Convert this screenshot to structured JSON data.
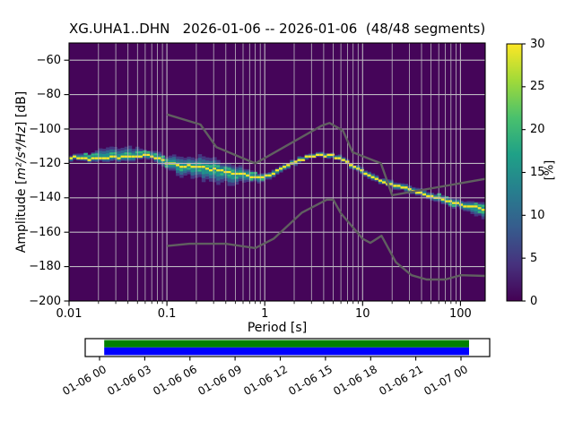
{
  "title": "XG.UHA1..DHN   2026-01-06 -- 2026-01-06  (48/48 segments)",
  "axes": {
    "xlabel": "Period [s]",
    "ylabel_prefix": "Amplitude [",
    "ylabel_math": "m²/s⁴/Hz",
    "ylabel_suffix": "] [dB]",
    "x_scale": "log",
    "x_range": [
      0.01,
      179
    ],
    "x_ticks": [
      0.01,
      0.1,
      1,
      10,
      100
    ],
    "x_tick_labels": [
      "0.01",
      "0.1",
      "1",
      "10",
      "100"
    ],
    "y_range": [
      -200,
      -50
    ],
    "y_ticks": [
      -60,
      -80,
      -100,
      -120,
      -140,
      -160,
      -180,
      -200
    ],
    "y_tick_labels": [
      "−60",
      "−80",
      "−100",
      "−120",
      "−140",
      "−160",
      "−180",
      "−200"
    ],
    "grid": true
  },
  "colorbar": {
    "label": "[%]",
    "vmin": 0,
    "vmax": 30,
    "ticks": [
      0,
      5,
      10,
      15,
      20,
      25,
      30
    ],
    "tick_labels": [
      "0",
      "5",
      "10",
      "15",
      "20",
      "25",
      "30"
    ],
    "colormap": "viridis"
  },
  "chart_data": {
    "type": "heatmap",
    "title": "XG.UHA1..DHN   2026-01-06 -- 2026-01-06  (48/48 segments)",
    "xlabel": "Period [s]",
    "ylabel": "Amplitude [m²/s⁴/Hz] [dB]",
    "segments_used": 48,
    "segments_total": 48,
    "mode_curve_period_s": [
      0.01,
      0.016,
      0.025,
      0.035,
      0.05,
      0.066,
      0.083,
      0.1,
      0.14,
      0.2,
      0.32,
      0.5,
      0.71,
      0.89,
      1.12,
      1.41,
      2.09,
      2.82,
      3.63,
      4.79,
      6.31,
      7.94,
      10.0,
      13.2,
      17.4,
      22.4,
      31.6,
      44.7,
      63.1,
      100,
      126,
      179
    ],
    "mode_curve_db": [
      -116.8,
      -117.2,
      -116.8,
      -116.2,
      -115.8,
      -115.6,
      -117.5,
      -119.8,
      -121.3,
      -122.0,
      -124.0,
      -125.8,
      -127.0,
      -127.4,
      -126.3,
      -123.8,
      -118.8,
      -115.8,
      -114.8,
      -115.5,
      -118.0,
      -121.5,
      -124.5,
      -128.5,
      -131.5,
      -133.0,
      -135.5,
      -138.0,
      -140.8,
      -143.8,
      -145.0,
      -147.5
    ],
    "spread_period_s": [
      0.01,
      0.016,
      0.028,
      0.045,
      0.066,
      0.089,
      0.126,
      0.2,
      0.32,
      0.5,
      0.71,
      1.0,
      1.58,
      3.16,
      6.31,
      10,
      20,
      39.8,
      79.4,
      126,
      179
    ],
    "spread_up_db": [
      1.5,
      3.5,
      7.0,
      5.0,
      3.0,
      3.5,
      5.0,
      6.0,
      5.5,
      4.5,
      3.0,
      2.0,
      1.8,
      1.5,
      1.5,
      1.8,
      2.0,
      2.2,
      2.5,
      3.0,
      3.5
    ],
    "spread_down_db": [
      1.5,
      2.0,
      2.5,
      2.5,
      2.0,
      3.0,
      5.0,
      7.0,
      7.5,
      6.0,
      4.0,
      2.5,
      1.8,
      1.5,
      1.5,
      1.8,
      2.0,
      2.2,
      2.8,
      3.5,
      5.5
    ],
    "nhnm": {
      "period_s": [
        0.1,
        0.22,
        0.32,
        0.8,
        3.8,
        4.6,
        6.3,
        7.9,
        15.4,
        20,
        179
      ],
      "db": [
        -91.5,
        -97.4,
        -110.5,
        -120.0,
        -98.1,
        -96.5,
        -101.0,
        -113.5,
        -120.0,
        -138.5,
        -129.0
      ]
    },
    "nlnm": {
      "period_s": [
        0.1,
        0.17,
        0.4,
        0.8,
        1.24,
        2.4,
        4.3,
        5.0,
        6.0,
        10.0,
        12.0,
        15.6,
        21.9,
        31.6,
        45.0,
        70.0,
        101.0,
        179
      ],
      "db": [
        -168.0,
        -166.7,
        -166.7,
        -169.2,
        -163.7,
        -148.6,
        -141.1,
        -141.1,
        -149.0,
        -163.8,
        -166.2,
        -162.1,
        -177.5,
        -185.0,
        -187.5,
        -187.5,
        -185.0,
        -185.4
      ]
    }
  },
  "timeline": {
    "tick_labels": [
      "01-06 00",
      "01-06 03",
      "01-06 06",
      "01-06 09",
      "01-06 12",
      "01-06 15",
      "01-06 18",
      "01-06 21",
      "01-07 00"
    ],
    "coverage_start_frac": 0.047,
    "coverage_end_frac": 0.949,
    "bar_top_color": "#008000",
    "bar_bottom_color": "#0000ff"
  },
  "colors": {
    "plot_background": "#450559",
    "grid": "#bcb6c0",
    "noise_models": "#606060",
    "mode_line": "#fde725",
    "spine": "#000000"
  }
}
